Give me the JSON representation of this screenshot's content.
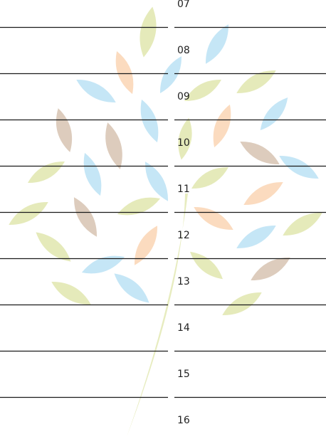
{
  "hours": [
    "07",
    "08",
    "09",
    "10",
    "11",
    "12",
    "13",
    "14",
    "15",
    "16"
  ]
}
